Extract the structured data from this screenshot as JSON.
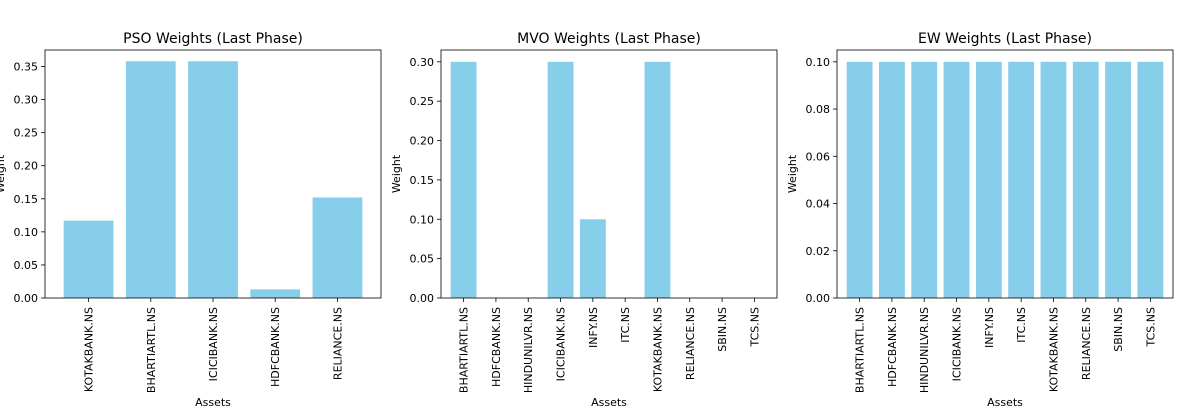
{
  "chart_data": [
    {
      "type": "bar",
      "title": "PSO Weights (Last Phase)",
      "xlabel": "Assets",
      "ylabel": "Weight",
      "categories": [
        "KOTAKBANK.NS",
        "BHARTIARTL.NS",
        "ICICIBANK.NS",
        "HDFCBANK.NS",
        "RELIANCE.NS"
      ],
      "values": [
        0.117,
        0.358,
        0.358,
        0.013,
        0.152
      ],
      "ylim": [
        0,
        0.375
      ],
      "yticks": [
        0.0,
        0.05,
        0.1,
        0.15,
        0.2,
        0.25,
        0.3,
        0.35
      ],
      "ytick_labels": [
        "0.00",
        "0.05",
        "0.10",
        "0.15",
        "0.20",
        "0.25",
        "0.30",
        "0.35"
      ],
      "bar_color": "#87CEEB",
      "grid": false
    },
    {
      "type": "bar",
      "title": "MVO Weights (Last Phase)",
      "xlabel": "Assets",
      "ylabel": "Weight",
      "categories": [
        "BHARTIARTL.NS",
        "HDFCBANK.NS",
        "HINDUNILVR.NS",
        "ICICIBANK.NS",
        "INFY.NS",
        "ITC.NS",
        "KOTAKBANK.NS",
        "RELIANCE.NS",
        "SBIN.NS",
        "TCS.NS"
      ],
      "values": [
        0.3,
        0,
        0,
        0.3,
        0.1,
        0,
        0.3,
        0,
        0,
        0
      ],
      "ylim": [
        0,
        0.315
      ],
      "yticks": [
        0.0,
        0.05,
        0.1,
        0.15,
        0.2,
        0.25,
        0.3
      ],
      "ytick_labels": [
        "0.00",
        "0.05",
        "0.10",
        "0.15",
        "0.20",
        "0.25",
        "0.30"
      ],
      "bar_color": "#87CEEB",
      "grid": false
    },
    {
      "type": "bar",
      "title": "EW Weights (Last Phase)",
      "xlabel": "Assets",
      "ylabel": "Weight",
      "categories": [
        "BHARTIARTL.NS",
        "HDFCBANK.NS",
        "HINDUNILVR.NS",
        "ICICIBANK.NS",
        "INFY.NS",
        "ITC.NS",
        "KOTAKBANK.NS",
        "RELIANCE.NS",
        "SBIN.NS",
        "TCS.NS"
      ],
      "values": [
        0.1,
        0.1,
        0.1,
        0.1,
        0.1,
        0.1,
        0.1,
        0.1,
        0.1,
        0.1
      ],
      "ylim": [
        0,
        0.105
      ],
      "yticks": [
        0.0,
        0.02,
        0.04,
        0.06,
        0.08,
        0.1
      ],
      "ytick_labels": [
        "0.00",
        "0.02",
        "0.04",
        "0.06",
        "0.08",
        "0.10"
      ],
      "bar_color": "#87CEEB",
      "grid": false
    }
  ]
}
